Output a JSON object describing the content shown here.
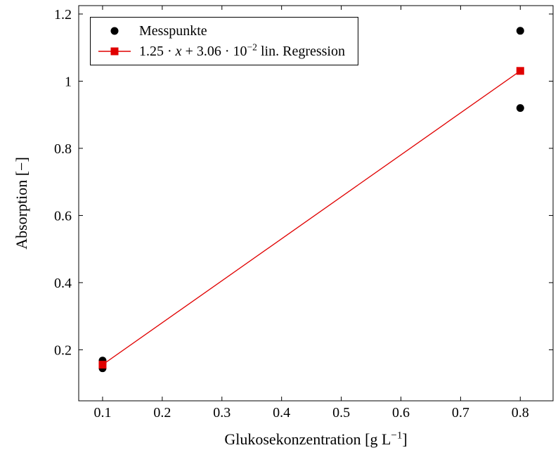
{
  "chart_data": {
    "type": "scatter",
    "title": "",
    "xlabel": "Glukosekonzentration [g L⁻¹]",
    "ylabel": "Absorption [−]",
    "xlim": [
      0.06,
      0.855
    ],
    "ylim": [
      0.048,
      1.225
    ],
    "xticks": [
      0.1,
      0.2,
      0.3,
      0.4,
      0.5,
      0.6,
      0.7,
      0.8
    ],
    "xtick_labels": [
      "0.1",
      "0.2",
      "0.3",
      "0.4",
      "0.5",
      "0.6",
      "0.7",
      "0.8"
    ],
    "yticks": [
      0.2,
      0.4,
      0.6,
      0.8,
      1.0,
      1.2
    ],
    "ytick_labels": [
      "0.2",
      "0.4",
      "0.6",
      "0.8",
      "1",
      "1.2"
    ],
    "grid": false,
    "legend_position": "top-left",
    "frame_color": "#000000",
    "series": [
      {
        "name": "Messpunkte",
        "marker": "circle",
        "marker_size": 5.5,
        "color": "#000000",
        "draw_line": false,
        "points": [
          [
            0.1,
            0.145
          ],
          [
            0.1,
            0.159
          ],
          [
            0.1,
            0.168
          ],
          [
            0.8,
            0.92
          ],
          [
            0.8,
            1.15
          ]
        ]
      },
      {
        "name": "1.25 · x + 3.06 · 10⁻² lin. Regression",
        "marker": "square",
        "marker_size": 5.5,
        "color": "#e00000",
        "draw_line": true,
        "slope": 1.25,
        "intercept": 0.0306,
        "points": [
          [
            0.1,
            0.1556
          ],
          [
            0.8,
            1.0306
          ]
        ]
      }
    ]
  },
  "legend": {
    "entries": [
      {
        "label": "Messpunkte"
      },
      {
        "label_pre": "1.25 · ",
        "label_var": "x",
        "label_mid": " + 3.06 · 10",
        "label_sup": "−2",
        "label_post": " lin. Regression"
      }
    ]
  },
  "axes": {
    "x_label_pre": "Glukosekonzentration [g L",
    "x_label_sup": "−1",
    "x_label_post": "]",
    "y_label": "Absorption [−]"
  }
}
